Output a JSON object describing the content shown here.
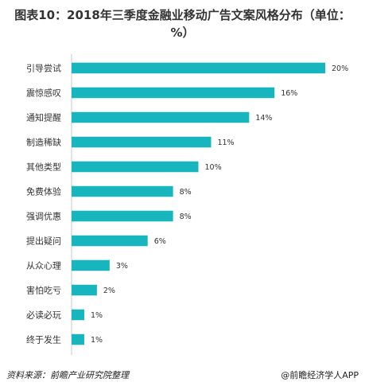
{
  "chart_data": {
    "type": "bar",
    "orientation": "horizontal",
    "title": "图表10：2018年三季度金融业移动广告文案风格分布（单位：%）",
    "categories": [
      "引导尝试",
      "震惊感叹",
      "通知提醒",
      "制造稀缺",
      "其他类型",
      "免费体验",
      "强调优惠",
      "提出疑问",
      "从众心理",
      "害怕吃亏",
      "必读必玩",
      "终于发生"
    ],
    "values": [
      20,
      16,
      14,
      11,
      10,
      8,
      8,
      6,
      3,
      2,
      1,
      1
    ],
    "value_labels": [
      "20%",
      "16%",
      "14%",
      "11%",
      "10%",
      "8%",
      "8%",
      "6%",
      "3%",
      "2%",
      "1%",
      "1%"
    ],
    "xlim": [
      0,
      20
    ],
    "grid": false,
    "bar_color": "#17b6bf"
  },
  "footer": {
    "source": "资料来源：前瞻产业研究院整理",
    "brand": "@前瞻经济学人APP"
  }
}
